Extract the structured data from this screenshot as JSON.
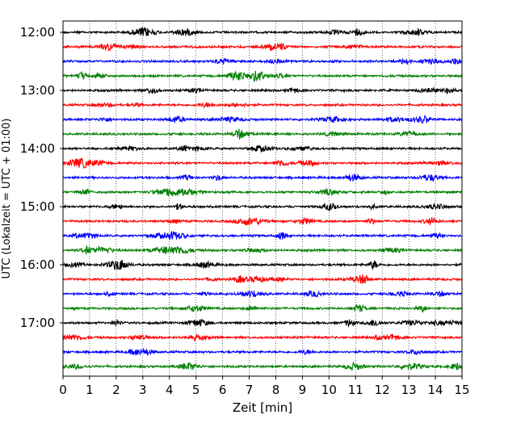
{
  "chart_data": {
    "type": "line",
    "title": "",
    "xlabel": "Zeit  [min]",
    "ylabel": "UTC (Lokalzeit = UTC + 01:00)",
    "xlim": [
      0,
      15
    ],
    "x_ticks": [
      0,
      1,
      2,
      3,
      4,
      5,
      6,
      7,
      8,
      9,
      10,
      11,
      12,
      13,
      14,
      15
    ],
    "x_tick_labels": [
      "0",
      "1",
      "2",
      "3",
      "4",
      "5",
      "6",
      "7",
      "8",
      "9",
      "10",
      "11",
      "12",
      "13",
      "14",
      "15"
    ],
    "y_tick_labels": [
      "12:00",
      "13:00",
      "14:00",
      "15:00",
      "16:00",
      "17:00"
    ],
    "grid": "vertical dotted",
    "legend": "none",
    "trace_interval_minutes": 15,
    "trace_colors_cycle": [
      "#000000",
      "#ff0000",
      "#0000ff",
      "#008000"
    ],
    "series": [
      {
        "start": "12:00",
        "color": "#000000"
      },
      {
        "start": "12:15",
        "color": "#ff0000"
      },
      {
        "start": "12:30",
        "color": "#0000ff"
      },
      {
        "start": "12:45",
        "color": "#008000"
      },
      {
        "start": "13:00",
        "color": "#000000"
      },
      {
        "start": "13:15",
        "color": "#ff0000"
      },
      {
        "start": "13:30",
        "color": "#0000ff"
      },
      {
        "start": "13:45",
        "color": "#008000"
      },
      {
        "start": "14:00",
        "color": "#000000"
      },
      {
        "start": "14:15",
        "color": "#ff0000"
      },
      {
        "start": "14:30",
        "color": "#0000ff"
      },
      {
        "start": "14:45",
        "color": "#008000"
      },
      {
        "start": "15:00",
        "color": "#000000"
      },
      {
        "start": "15:15",
        "color": "#ff0000"
      },
      {
        "start": "15:30",
        "color": "#0000ff"
      },
      {
        "start": "15:45",
        "color": "#008000"
      },
      {
        "start": "16:00",
        "color": "#000000"
      },
      {
        "start": "16:15",
        "color": "#ff0000"
      },
      {
        "start": "16:30",
        "color": "#0000ff"
      },
      {
        "start": "16:45",
        "color": "#008000"
      },
      {
        "start": "17:00",
        "color": "#000000"
      },
      {
        "start": "17:15",
        "color": "#ff0000"
      },
      {
        "start": "17:30",
        "color": "#0000ff"
      },
      {
        "start": "17:45",
        "color": "#008000"
      }
    ]
  }
}
